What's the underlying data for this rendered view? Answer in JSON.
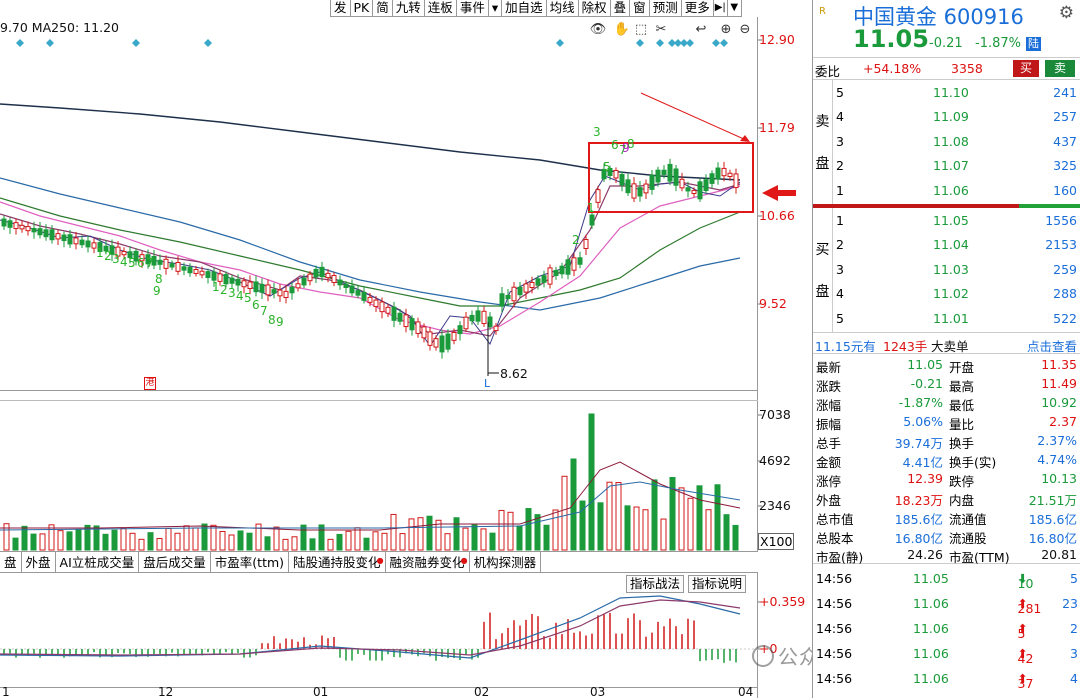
{
  "toolbar": {
    "items": [
      "发",
      "PK",
      "简",
      "九转",
      "连板",
      "事件",
      "▾",
      "加自选",
      "均线",
      "除权",
      "叠",
      "窗",
      "预测",
      "更多"
    ],
    "icons": [
      "eye-icon",
      "hand-icon",
      "cursor-icon",
      "scissors-icon",
      "zoom-in-icon",
      "zoom-out-icon"
    ]
  },
  "ma_label": "9.70 MA250: 11.20",
  "price_axis": [
    "12.90",
    "11.79",
    "10.66",
    "9.52"
  ],
  "low_label": "8.62",
  "low_marker": "L",
  "gang_badge": "港",
  "volume_axis": [
    "7038",
    "4692",
    "2346"
  ],
  "x100_label": "X100",
  "macd_axis": [
    "+0.359",
    "+0"
  ],
  "indicator_tabs": [
    "盘",
    "外盘",
    "AI立桩成交量",
    "盘后成交量",
    "市盈率(ttm)",
    "陆股通持股变化",
    "融资融券变化",
    "机构探测器"
  ],
  "indicator_buttons": [
    "指标战法",
    "指标说明"
  ],
  "dates": [
    "1",
    "12",
    "01",
    "02",
    "03",
    "04"
  ],
  "td_counts": {
    "group1": [
      "1",
      "2",
      "3",
      "4",
      "5",
      "6",
      "7",
      "8",
      "9"
    ],
    "group2": [
      "1",
      "2",
      "3",
      "4",
      "5",
      "6",
      "7",
      "8",
      "9"
    ],
    "group3": [
      "1",
      "2",
      "3",
      "5",
      "6",
      "7",
      "8",
      "9"
    ]
  },
  "watermark": "公众号 · 佳财一分钟",
  "quote": {
    "badge": "R",
    "name": "中国黄金 600916",
    "price": "11.05",
    "change": "-0.21",
    "change_pct": "-1.87%",
    "market_tag": "陆",
    "weibi_label": "委比",
    "weibi_value": "+54.18%",
    "weicha_value": "3358",
    "buy_label": "买",
    "sell_label": "卖",
    "ask_label": [
      "卖",
      "盘"
    ],
    "bid_label": [
      "买",
      "盘"
    ],
    "asks": [
      {
        "level": "5",
        "price": "11.10",
        "vol": "241"
      },
      {
        "level": "4",
        "price": "11.09",
        "vol": "257"
      },
      {
        "level": "3",
        "price": "11.08",
        "vol": "437"
      },
      {
        "level": "2",
        "price": "11.07",
        "vol": "325"
      },
      {
        "level": "1",
        "price": "11.06",
        "vol": "160"
      }
    ],
    "bids": [
      {
        "level": "1",
        "price": "11.05",
        "vol": "1556"
      },
      {
        "level": "2",
        "price": "11.04",
        "vol": "2153"
      },
      {
        "level": "3",
        "price": "11.03",
        "vol": "259"
      },
      {
        "level": "4",
        "price": "11.02",
        "vol": "288"
      },
      {
        "level": "5",
        "price": "11.01",
        "vol": "522"
      }
    ],
    "summary": {
      "amount": "11.15元有",
      "lots": "1243手",
      "type": "大卖单",
      "link": "点击查看"
    },
    "stats": [
      {
        "l1": "最新",
        "v1": "11.05",
        "c1": "green",
        "l2": "开盘",
        "v2": "11.35",
        "c2": "red"
      },
      {
        "l1": "涨跌",
        "v1": "-0.21",
        "c1": "green",
        "l2": "最高",
        "v2": "11.49",
        "c2": "red"
      },
      {
        "l1": "涨幅",
        "v1": "-1.87%",
        "c1": "green",
        "l2": "最低",
        "v2": "10.92",
        "c2": "green"
      },
      {
        "l1": "振幅",
        "v1": "5.06%",
        "c1": "blue",
        "l2": "量比",
        "v2": "2.37",
        "c2": "red"
      },
      {
        "l1": "总手",
        "v1": "39.74万",
        "c1": "blue",
        "l2": "换手",
        "v2": "2.37%",
        "c2": "blue"
      },
      {
        "l1": "金额",
        "v1": "4.41亿",
        "c1": "blue",
        "l2": "换手(实)",
        "v2": "4.74%",
        "c2": "blue"
      },
      {
        "l1": "涨停",
        "v1": "12.39",
        "c1": "red",
        "l2": "跌停",
        "v2": "10.13",
        "c2": "green"
      },
      {
        "l1": "外盘",
        "v1": "18.23万",
        "c1": "red",
        "l2": "内盘",
        "v2": "21.51万",
        "c2": "green"
      },
      {
        "l1": "总市值",
        "v1": "185.6亿",
        "c1": "blue",
        "l2": "流通值",
        "v2": "185.6亿",
        "c2": "blue"
      },
      {
        "l1": "总股本",
        "v1": "16.80亿",
        "c1": "blue",
        "l2": "流通股",
        "v2": "16.80亿",
        "c2": "blue"
      },
      {
        "l1": "市盈(静)",
        "v1": "24.26",
        "c1": "black",
        "l2": "市盈(TTM)",
        "v2": "20.81",
        "c2": "black"
      }
    ],
    "ticks": [
      {
        "time": "14:56",
        "price": "11.05",
        "vol": "10",
        "dir": "down",
        "num": "5"
      },
      {
        "time": "14:56",
        "price": "11.06",
        "vol": "281",
        "dir": "up",
        "num": "23"
      },
      {
        "time": "14:56",
        "price": "11.06",
        "vol": "5",
        "dir": "up",
        "num": "2"
      },
      {
        "time": "14:56",
        "price": "11.06",
        "vol": "42",
        "dir": "up",
        "num": "3"
      },
      {
        "time": "14:56",
        "price": "11.06",
        "vol": "37",
        "dir": "up",
        "num": "4"
      }
    ]
  },
  "colors": {
    "up": "#d11818",
    "down": "#1a9a3a",
    "accent": "#1a6ed8"
  }
}
